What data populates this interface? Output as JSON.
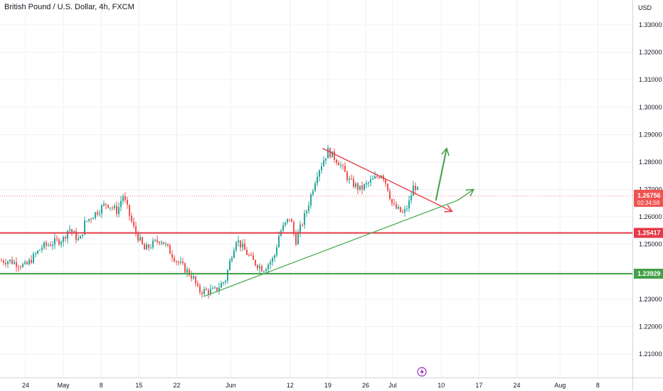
{
  "header": {
    "title": "British Pound / U.S. Dollar, 4h, FXCM"
  },
  "price_axis": {
    "currency": "USD"
  },
  "colors": {
    "up": "#26a69a",
    "down": "#ef5350",
    "resistance": "#e53946",
    "support": "#43a047",
    "downtrend": "#e53946",
    "uptrend": "#4caf50",
    "arrow_up": "#43a047",
    "arrow_red": "#e53946",
    "last_price_label": "#ef5350",
    "grid": "#edf0f5",
    "event_icon": "#9c27b0",
    "last_price_line": "#ef5350"
  },
  "chart_data": {
    "type": "candlestick",
    "title": "British Pound / U.S. Dollar, 4h, FXCM",
    "symbol": "GBP/USD",
    "timeframe": "4h",
    "source": "FXCM",
    "yaxis": {
      "range": [
        1.2002,
        1.34
      ],
      "ticks": [
        "1.33000",
        "1.32000",
        "1.31000",
        "1.30000",
        "1.29000",
        "1.28000",
        "1.27000",
        "1.26000",
        "1.25000",
        "1.24000",
        "1.23000",
        "1.22000",
        "1.21000"
      ]
    },
    "xaxis": {
      "tick_labels": [
        "24",
        "May",
        "8",
        "15",
        "22",
        "Jun",
        "12",
        "19",
        "26",
        "Jul",
        "10",
        "17",
        "24",
        "Aug",
        "8"
      ]
    },
    "close_path": [
      [
        "Apr 21",
        1.244
      ],
      [
        "Apr 24",
        1.242
      ],
      [
        "Apr 27",
        1.249
      ],
      [
        "May 1",
        1.252
      ],
      [
        "May 2",
        1.256
      ],
      [
        "May 4",
        1.251
      ],
      [
        "May 5",
        1.258
      ],
      [
        "May 9",
        1.265
      ],
      [
        "May 11",
        1.262
      ],
      [
        "May 12",
        1.268
      ],
      [
        "May 14",
        1.256
      ],
      [
        "May 16",
        1.248
      ],
      [
        "May 19",
        1.252
      ],
      [
        "May 22",
        1.244
      ],
      [
        "May 23",
        1.242
      ],
      [
        "May 25",
        1.238
      ],
      [
        "May 26",
        1.233
      ],
      [
        "May 29",
        1.233
      ],
      [
        "May 31",
        1.237
      ],
      [
        "Jun 1",
        1.245
      ],
      [
        "Jun 2",
        1.252
      ],
      [
        "Jun 5",
        1.244
      ],
      [
        "Jun 7",
        1.241
      ],
      [
        "Jun 9",
        1.245
      ],
      [
        "Jun 10",
        1.254
      ],
      [
        "Jun 12",
        1.26
      ],
      [
        "Jun 13",
        1.251
      ],
      [
        "Jun 15",
        1.262
      ],
      [
        "Jun 17",
        1.276
      ],
      [
        "Jun 19",
        1.284
      ],
      [
        "Jun 21",
        1.28
      ],
      [
        "Jun 23",
        1.273
      ],
      [
        "Jun 25",
        1.27
      ],
      [
        "Jun 27",
        1.273
      ],
      [
        "Jun 29",
        1.276
      ],
      [
        "Jun 30",
        1.271
      ],
      [
        "Jul 1",
        1.264
      ],
      [
        "Jul 3",
        1.261
      ],
      [
        "Jul 4",
        1.265
      ],
      [
        "Jul 5",
        1.272
      ],
      [
        "Jul 6",
        1.2676
      ]
    ],
    "horizontal_levels": [
      {
        "price": 1.25417,
        "label": "1.25417"
      },
      {
        "price": 1.23929,
        "label": "1.23929"
      }
    ],
    "trendlines": [
      {
        "from": [
          "Jun 18",
          1.285
        ],
        "to": [
          "Jul 12",
          1.262
        ]
      },
      {
        "from": [
          "May 27",
          1.231
        ],
        "to": [
          "Jul 13",
          1.266
        ]
      }
    ],
    "arrows": [
      {
        "from": [
          "Jul 9",
          1.266
        ],
        "to": [
          "Jul 11",
          1.285
        ]
      },
      {
        "from": [
          "Jul 13",
          1.266
        ],
        "to": [
          "Jul 16",
          1.27
        ]
      }
    ],
    "last_price": {
      "label": "1.26756",
      "countdown": "02:34:58"
    }
  }
}
